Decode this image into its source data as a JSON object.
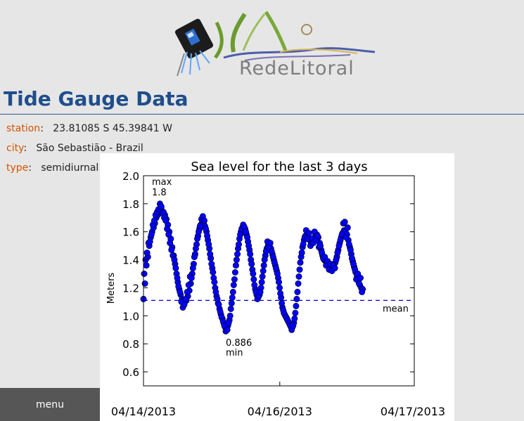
{
  "header": {
    "logo_text": "RedeLitoral"
  },
  "page_title": "Tide Gauge Data",
  "station_info": {
    "station_label": "station",
    "station_value": "23.81085 S 45.39841 W",
    "city_label": "city",
    "city_value": "São Sebastião - Brazil",
    "type_label": "type",
    "type_value": "semidiurnal"
  },
  "menu": {
    "label": "menu"
  },
  "chart_data": {
    "type": "scatter",
    "title": "Sea level for the last 3 days",
    "xlabel": "",
    "ylabel": "Meters",
    "xlim": [
      "04/14/2013",
      "04/17/2013"
    ],
    "ylim": [
      0.5,
      2.0
    ],
    "yticks": [
      "0.6",
      "0.8",
      "1.0",
      "1.2",
      "1.4",
      "1.6",
      "1.8",
      "2.0"
    ],
    "xticks": [
      "04/14/2013",
      "04/16/2013",
      "04/17/2013"
    ],
    "mean": 1.11,
    "mean_label": "mean",
    "max": {
      "label": "max",
      "value_text": "1.8",
      "value": 1.8
    },
    "min": {
      "label": "min",
      "value_text": "0.886",
      "value": 0.886
    },
    "marker_color": "#0000ff",
    "mean_color": "#0000cc",
    "points": [
      [
        0.0,
        1.12
      ],
      [
        0.008,
        1.23
      ],
      [
        0.016,
        1.36
      ],
      [
        0.024,
        1.42
      ],
      [
        0.032,
        1.5
      ],
      [
        0.04,
        1.56
      ],
      [
        0.048,
        1.6
      ],
      [
        0.056,
        1.63
      ],
      [
        0.063,
        1.66
      ],
      [
        0.071,
        1.7
      ],
      [
        0.079,
        1.72
      ],
      [
        0.087,
        1.74
      ],
      [
        0.095,
        1.75
      ],
      [
        0.103,
        1.75
      ],
      [
        0.111,
        1.74
      ],
      [
        0.119,
        1.72
      ],
      [
        0.127,
        1.69
      ],
      [
        0.135,
        1.65
      ],
      [
        0.143,
        1.6
      ],
      [
        0.151,
        1.55
      ],
      [
        0.159,
        1.49
      ],
      [
        0.167,
        1.43
      ],
      [
        0.175,
        1.37
      ],
      [
        0.183,
        1.3
      ],
      [
        0.19,
        1.24
      ],
      [
        0.198,
        1.19
      ],
      [
        0.206,
        1.15
      ],
      [
        0.214,
        1.12
      ],
      [
        0.222,
        1.11
      ],
      [
        0.23,
        1.1
      ],
      [
        0.238,
        1.11
      ],
      [
        0.246,
        1.14
      ],
      [
        0.254,
        1.18
      ],
      [
        0.262,
        1.23
      ],
      [
        0.27,
        1.3
      ],
      [
        0.278,
        1.37
      ],
      [
        0.286,
        1.44
      ],
      [
        0.294,
        1.51
      ],
      [
        0.302,
        1.57
      ],
      [
        0.31,
        1.62
      ],
      [
        0.317,
        1.65
      ],
      [
        0.325,
        1.66
      ],
      [
        0.333,
        1.66
      ],
      [
        0.341,
        1.64
      ],
      [
        0.349,
        1.6
      ],
      [
        0.357,
        1.54
      ],
      [
        0.365,
        1.48
      ],
      [
        0.373,
        1.41
      ],
      [
        0.381,
        1.34
      ],
      [
        0.389,
        1.27
      ],
      [
        0.397,
        1.2
      ],
      [
        0.405,
        1.14
      ],
      [
        0.413,
        1.09
      ],
      [
        0.421,
        1.05
      ],
      [
        0.429,
        1.01
      ],
      [
        0.437,
        0.98
      ],
      [
        0.444,
        0.95
      ],
      [
        0.452,
        0.92
      ],
      [
        0.46,
        0.91
      ],
      [
        0.468,
        0.93
      ],
      [
        0.476,
        0.97
      ],
      [
        0.484,
        1.05
      ],
      [
        0.492,
        1.13
      ],
      [
        0.5,
        1.22
      ],
      [
        0.508,
        1.31
      ],
      [
        0.516,
        1.4
      ],
      [
        0.524,
        1.48
      ],
      [
        0.532,
        1.55
      ],
      [
        0.54,
        1.6
      ],
      [
        0.548,
        1.63
      ],
      [
        0.556,
        1.64
      ],
      [
        0.563,
        1.62
      ],
      [
        0.571,
        1.58
      ],
      [
        0.579,
        1.53
      ],
      [
        0.587,
        1.47
      ],
      [
        0.595,
        1.4
      ],
      [
        0.603,
        1.33
      ],
      [
        0.611,
        1.26
      ],
      [
        0.619,
        1.19
      ],
      [
        0.627,
        1.15
      ],
      [
        0.635,
        1.13
      ],
      [
        0.643,
        1.15
      ],
      [
        0.651,
        1.2
      ],
      [
        0.659,
        1.28
      ],
      [
        0.667,
        1.36
      ],
      [
        0.675,
        1.43
      ],
      [
        0.683,
        1.48
      ],
      [
        0.69,
        1.5
      ],
      [
        0.698,
        1.5
      ],
      [
        0.706,
        1.48
      ],
      [
        0.714,
        1.44
      ],
      [
        0.722,
        1.4
      ],
      [
        0.73,
        1.36
      ],
      [
        0.738,
        1.32
      ],
      [
        0.746,
        1.27
      ],
      [
        0.754,
        1.2
      ],
      [
        0.762,
        1.13
      ],
      [
        0.77,
        1.06
      ],
      [
        0.778,
        1.02
      ],
      [
        0.786,
        1.0
      ],
      [
        0.794,
        0.98
      ],
      [
        0.802,
        0.96
      ],
      [
        0.81,
        0.94
      ],
      [
        0.817,
        0.92
      ],
      [
        0.825,
        0.92
      ],
      [
        0.833,
        0.95
      ],
      [
        0.841,
        1.02
      ],
      [
        0.849,
        1.12
      ],
      [
        0.857,
        1.23
      ],
      [
        0.865,
        1.33
      ],
      [
        0.873,
        1.42
      ],
      [
        0.881,
        1.49
      ],
      [
        0.889,
        1.54
      ],
      [
        0.897,
        1.57
      ],
      [
        0.905,
        1.58
      ],
      [
        0.913,
        1.57
      ],
      [
        0.921,
        1.54
      ],
      [
        0.929,
        1.52
      ],
      [
        0.937,
        1.53
      ],
      [
        0.944,
        1.55
      ],
      [
        0.952,
        1.57
      ],
      [
        0.96,
        1.58
      ],
      [
        0.968,
        1.56
      ],
      [
        0.976,
        1.52
      ],
      [
        0.984,
        1.47
      ],
      [
        0.992,
        1.43
      ],
      [
        1.0,
        1.4
      ],
      [
        1.008,
        1.39
      ],
      [
        1.016,
        1.38
      ],
      [
        1.024,
        1.37
      ],
      [
        1.032,
        1.36
      ],
      [
        1.04,
        1.35
      ],
      [
        1.048,
        1.34
      ],
      [
        1.056,
        1.35
      ],
      [
        1.063,
        1.38
      ],
      [
        1.071,
        1.42
      ],
      [
        1.079,
        1.47
      ],
      [
        1.087,
        1.52
      ],
      [
        1.095,
        1.56
      ],
      [
        1.103,
        1.59
      ],
      [
        1.111,
        1.61
      ],
      [
        1.119,
        1.6
      ],
      [
        1.127,
        1.58
      ],
      [
        1.135,
        1.54
      ],
      [
        1.143,
        1.49
      ],
      [
        1.151,
        1.44
      ],
      [
        1.159,
        1.39
      ],
      [
        1.167,
        1.35
      ],
      [
        1.175,
        1.31
      ],
      [
        1.183,
        1.28
      ],
      [
        1.19,
        1.25
      ],
      [
        1.198,
        1.22
      ],
      [
        1.206,
        1.2
      ],
      [
        1.214,
        1.19
      ],
      [
        0.004,
        1.3
      ],
      [
        0.012,
        1.4
      ],
      [
        0.02,
        1.45
      ],
      [
        0.028,
        1.52
      ],
      [
        0.036,
        1.53
      ],
      [
        0.044,
        1.58
      ],
      [
        0.052,
        1.65
      ],
      [
        0.06,
        1.68
      ],
      [
        0.067,
        1.72
      ],
      [
        0.075,
        1.74
      ],
      [
        0.083,
        1.76
      ],
      [
        0.091,
        1.8
      ],
      [
        0.099,
        1.78
      ],
      [
        0.107,
        1.73
      ],
      [
        0.115,
        1.7
      ],
      [
        0.123,
        1.68
      ],
      [
        0.131,
        1.62
      ],
      [
        0.139,
        1.58
      ],
      [
        0.147,
        1.52
      ],
      [
        0.155,
        1.47
      ],
      [
        0.163,
        1.43
      ],
      [
        0.171,
        1.4
      ],
      [
        0.179,
        1.34
      ],
      [
        0.187,
        1.27
      ],
      [
        0.194,
        1.21
      ],
      [
        0.202,
        1.17
      ],
      [
        0.21,
        1.1
      ],
      [
        0.218,
        1.06
      ],
      [
        0.226,
        1.08
      ],
      [
        0.234,
        1.12
      ],
      [
        0.242,
        1.17
      ],
      [
        0.25,
        1.22
      ],
      [
        0.258,
        1.28
      ],
      [
        0.266,
        1.27
      ],
      [
        0.274,
        1.34
      ],
      [
        0.282,
        1.42
      ],
      [
        0.29,
        1.48
      ],
      [
        0.298,
        1.55
      ],
      [
        0.306,
        1.6
      ],
      [
        0.313,
        1.64
      ],
      [
        0.321,
        1.69
      ],
      [
        0.329,
        1.71
      ],
      [
        0.337,
        1.68
      ],
      [
        0.345,
        1.62
      ],
      [
        0.353,
        1.57
      ],
      [
        0.361,
        1.51
      ],
      [
        0.369,
        1.44
      ],
      [
        0.377,
        1.37
      ],
      [
        0.385,
        1.31
      ],
      [
        0.393,
        1.24
      ],
      [
        0.401,
        1.17
      ],
      [
        0.409,
        1.12
      ],
      [
        0.417,
        1.08
      ],
      [
        0.425,
        1.03
      ],
      [
        0.433,
        0.99
      ],
      [
        0.441,
        0.96
      ],
      [
        0.448,
        0.93
      ],
      [
        0.456,
        0.89
      ],
      [
        0.464,
        0.9
      ],
      [
        0.472,
        0.95
      ],
      [
        0.48,
        1.0
      ],
      [
        0.488,
        1.09
      ],
      [
        0.496,
        1.17
      ],
      [
        0.504,
        1.26
      ],
      [
        0.512,
        1.36
      ],
      [
        0.52,
        1.44
      ],
      [
        0.528,
        1.51
      ],
      [
        0.536,
        1.58
      ],
      [
        0.544,
        1.62
      ],
      [
        0.552,
        1.65
      ],
      [
        0.56,
        1.63
      ],
      [
        0.567,
        1.6
      ],
      [
        0.575,
        1.56
      ],
      [
        0.583,
        1.5
      ],
      [
        0.591,
        1.44
      ],
      [
        0.599,
        1.37
      ],
      [
        0.607,
        1.3
      ],
      [
        0.615,
        1.22
      ],
      [
        0.623,
        1.17
      ],
      [
        0.631,
        1.12
      ],
      [
        0.639,
        1.14
      ],
      [
        0.647,
        1.17
      ],
      [
        0.655,
        1.24
      ],
      [
        0.663,
        1.32
      ],
      [
        0.671,
        1.4
      ],
      [
        0.679,
        1.46
      ],
      [
        0.687,
        1.53
      ],
      [
        0.694,
        1.49
      ],
      [
        0.702,
        1.52
      ],
      [
        0.71,
        1.46
      ],
      [
        0.718,
        1.42
      ],
      [
        0.726,
        1.38
      ],
      [
        0.734,
        1.34
      ],
      [
        0.742,
        1.3
      ],
      [
        0.75,
        1.24
      ],
      [
        0.758,
        1.16
      ],
      [
        0.766,
        1.09
      ],
      [
        0.774,
        1.04
      ],
      [
        0.782,
        1.01
      ],
      [
        0.79,
        0.99
      ],
      [
        0.798,
        0.97
      ],
      [
        0.806,
        0.95
      ],
      [
        0.813,
        0.93
      ],
      [
        0.821,
        0.9
      ],
      [
        0.829,
        0.93
      ],
      [
        0.837,
        0.98
      ],
      [
        0.845,
        1.07
      ],
      [
        0.853,
        1.17
      ],
      [
        0.861,
        1.28
      ],
      [
        0.869,
        1.38
      ],
      [
        0.877,
        1.45
      ],
      [
        0.885,
        1.51
      ],
      [
        0.893,
        1.56
      ],
      [
        0.901,
        1.61
      ],
      [
        0.909,
        1.55
      ],
      [
        0.917,
        1.59
      ],
      [
        0.925,
        1.5
      ],
      [
        0.933,
        1.55
      ],
      [
        0.94,
        1.52
      ],
      [
        0.948,
        1.6
      ],
      [
        0.956,
        1.54
      ],
      [
        0.964,
        1.57
      ],
      [
        0.972,
        1.49
      ],
      [
        0.98,
        1.5
      ],
      [
        0.988,
        1.45
      ],
      [
        0.996,
        1.41
      ],
      [
        1.004,
        1.42
      ],
      [
        1.012,
        1.36
      ],
      [
        1.02,
        1.39
      ],
      [
        1.028,
        1.33
      ],
      [
        1.036,
        1.37
      ],
      [
        1.044,
        1.32
      ],
      [
        1.052,
        1.36
      ],
      [
        1.06,
        1.34
      ],
      [
        1.067,
        1.4
      ],
      [
        1.075,
        1.45
      ],
      [
        1.083,
        1.5
      ],
      [
        1.091,
        1.54
      ],
      [
        1.099,
        1.58
      ],
      [
        1.107,
        1.66
      ],
      [
        1.115,
        1.67
      ],
      [
        1.123,
        1.56
      ],
      [
        1.131,
        1.63
      ],
      [
        1.139,
        1.51
      ],
      [
        1.147,
        1.47
      ],
      [
        1.155,
        1.41
      ],
      [
        1.163,
        1.37
      ],
      [
        1.171,
        1.33
      ],
      [
        1.179,
        1.26
      ],
      [
        1.187,
        1.3
      ],
      [
        1.194,
        1.23
      ],
      [
        1.202,
        1.27
      ],
      [
        1.21,
        1.17
      ]
    ]
  }
}
